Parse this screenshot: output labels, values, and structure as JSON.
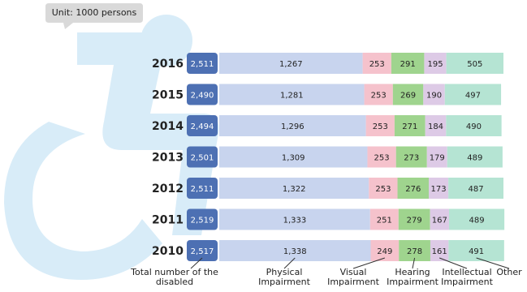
{
  "chart_data": {
    "type": "bar",
    "orientation": "horizontal",
    "stacked": true,
    "note": "Unit: 1000 persons",
    "categories": [
      "2016",
      "2015",
      "2014",
      "2013",
      "2012",
      "2011",
      "2010"
    ],
    "total": {
      "name": "Total number of the disabled",
      "color": "#4d70b3",
      "values": [
        2511,
        2490,
        2494,
        2501,
        2511,
        2519,
        2517
      ],
      "value_labels": [
        "2,511",
        "2,490",
        "2,494",
        "2,501",
        "2,511",
        "2,519",
        "2,517"
      ]
    },
    "series": [
      {
        "name": "Physical Impairment",
        "color": "#c8d4ee",
        "values": [
          1267,
          1281,
          1296,
          1309,
          1322,
          1333,
          1338
        ],
        "value_labels": [
          "1,267",
          "1,281",
          "1,296",
          "1,309",
          "1,322",
          "1,333",
          "1,338"
        ]
      },
      {
        "name": "Visual Impairment",
        "color": "#f5c2cc",
        "values": [
          253,
          253,
          253,
          253,
          253,
          251,
          249
        ]
      },
      {
        "name": "Hearing Impairment",
        "color": "#9fd48e",
        "values": [
          291,
          269,
          271,
          273,
          276,
          279,
          278
        ]
      },
      {
        "name": "Intellectual Impairment",
        "color": "#ddcae6",
        "values": [
          195,
          190,
          184,
          179,
          173,
          167,
          161
        ]
      },
      {
        "name": "Other",
        "color": "#b5e4d3",
        "values": [
          505,
          497,
          490,
          489,
          487,
          489,
          491
        ]
      }
    ]
  }
}
